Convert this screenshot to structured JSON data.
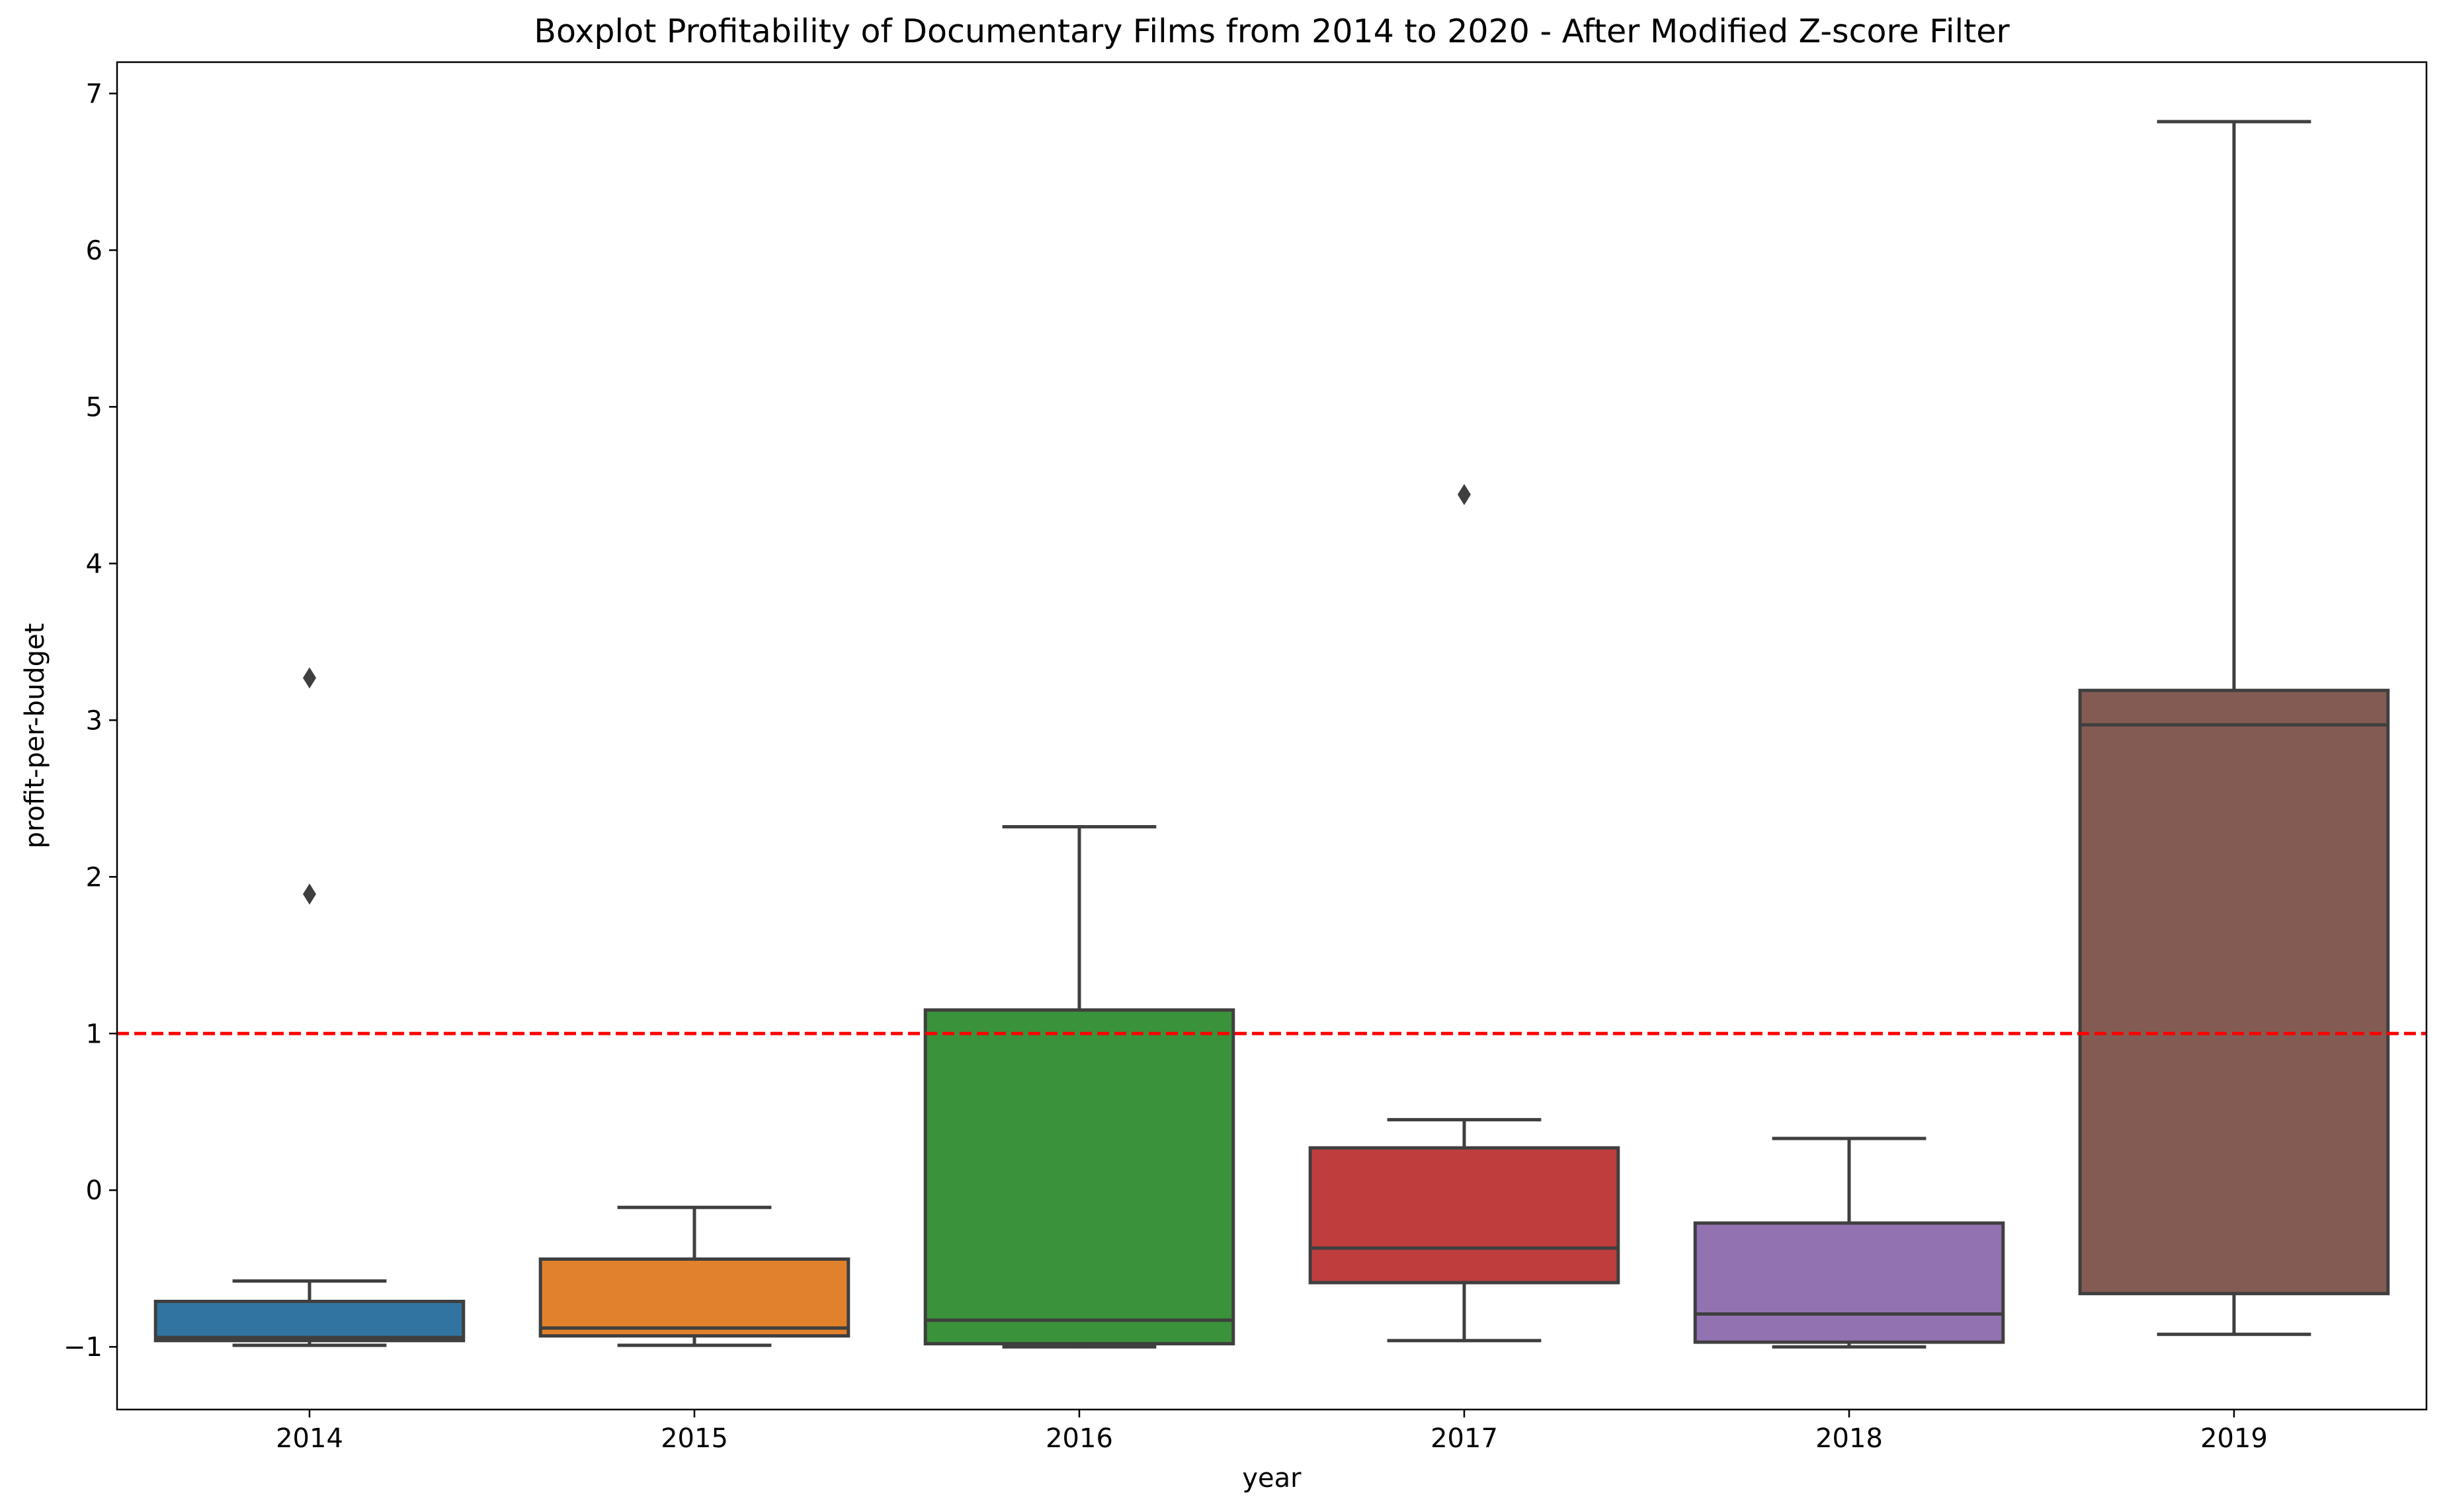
{
  "chart_data": {
    "type": "boxplot",
    "title": "Boxplot Profitability of Documentary Films from 2014 to 2020 - After Modified Z-score Filter",
    "xlabel": "year",
    "ylabel": "profit-per-budget",
    "categories": [
      "2014",
      "2015",
      "2016",
      "2017",
      "2018",
      "2019"
    ],
    "yticks": [
      -1,
      0,
      1,
      2,
      3,
      4,
      5,
      6,
      7
    ],
    "ylim": [
      -1.4,
      7.2
    ],
    "grid": false,
    "legend": "none",
    "reference_line": {
      "y": 1,
      "color": "#ff0000",
      "style": "dashed"
    },
    "boxes": [
      {
        "category": "2014",
        "color": "#3274a1",
        "whisker_low": -0.99,
        "q1": -0.96,
        "median": -0.94,
        "q3": -0.71,
        "whisker_high": -0.58,
        "outliers": [
          1.89,
          3.27
        ]
      },
      {
        "category": "2015",
        "color": "#e1812c",
        "whisker_low": -0.99,
        "q1": -0.93,
        "median": -0.88,
        "q3": -0.44,
        "whisker_high": -0.11,
        "outliers": []
      },
      {
        "category": "2016",
        "color": "#3a923a",
        "whisker_low": -1.0,
        "q1": -0.98,
        "median": -0.83,
        "q3": 1.15,
        "whisker_high": 2.32,
        "outliers": []
      },
      {
        "category": "2017",
        "color": "#c03d3e",
        "whisker_low": -0.96,
        "q1": -0.59,
        "median": -0.37,
        "q3": 0.27,
        "whisker_high": 0.45,
        "outliers": [
          4.44
        ]
      },
      {
        "category": "2018",
        "color": "#9372b2",
        "whisker_low": -1.0,
        "q1": -0.97,
        "median": -0.79,
        "q3": -0.21,
        "whisker_high": 0.33,
        "outliers": []
      },
      {
        "category": "2019",
        "color": "#845b53",
        "whisker_low": -0.92,
        "q1": -0.66,
        "median": 2.97,
        "q3": 3.19,
        "whisker_high": 6.82,
        "outliers": []
      }
    ]
  }
}
